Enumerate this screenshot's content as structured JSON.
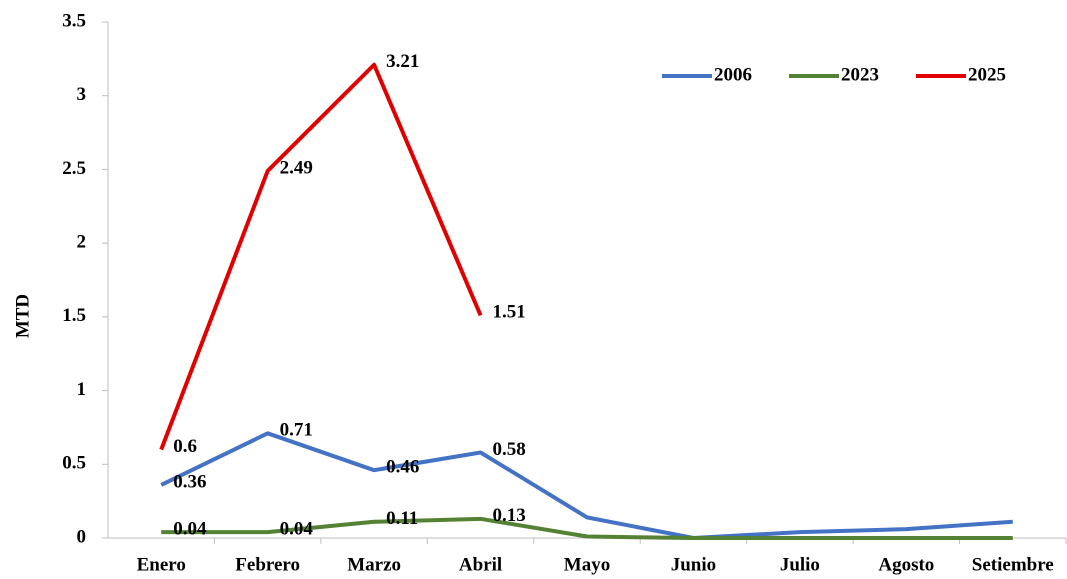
{
  "chart_data": {
    "type": "line",
    "y_label": "MTD",
    "categories": [
      "Enero",
      "Febrero",
      "Marzo",
      "Abril",
      "Mayo",
      "Junio",
      "Julio",
      "Agosto",
      "Setiembre"
    ],
    "series": [
      {
        "name": "2006",
        "color": "#4472c4",
        "values": [
          0.36,
          0.71,
          0.46,
          0.58,
          0.14,
          0,
          0.04,
          0.06,
          0.11
        ],
        "value_labels": [
          "0.36",
          "0.71",
          "0.46",
          "0.58",
          null,
          null,
          null,
          null,
          null
        ]
      },
      {
        "name": "2023",
        "color": "#548235",
        "values": [
          0.04,
          0.04,
          0.11,
          0.13,
          0.01,
          0,
          0,
          0,
          0
        ],
        "value_labels": [
          "0.04",
          "0.04",
          "0.11",
          "0.13",
          null,
          null,
          null,
          null,
          null
        ]
      },
      {
        "name": "2025",
        "color": "#e00000",
        "values": [
          0.6,
          2.49,
          3.21,
          1.51,
          null,
          null,
          null,
          null,
          null
        ],
        "value_labels": [
          "0.6",
          "2.49",
          "3.21",
          "1.51",
          null,
          null,
          null,
          null,
          null
        ]
      }
    ],
    "ylim": [
      0,
      3.5
    ],
    "yticks": [
      0,
      0.5,
      1,
      1.5,
      2,
      2.5,
      3,
      3.5
    ],
    "grid": false,
    "legend": "top-right"
  }
}
